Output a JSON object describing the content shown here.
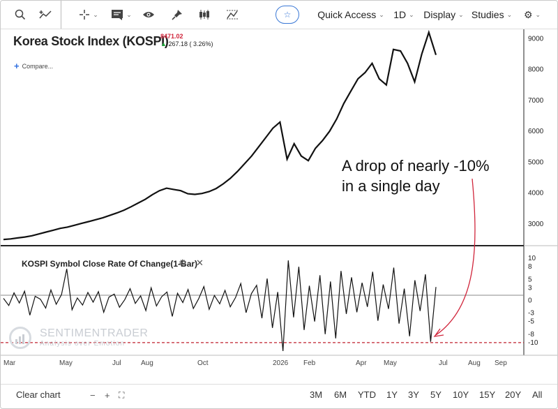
{
  "toolbar": {
    "items": [
      "search-icon",
      "draw-trend-icon",
      "crosshair-icon",
      "chart-type-icon",
      "eye-icon",
      "pin-icon",
      "candlestick-icon",
      "zigzag-icon",
      "star-icon",
      "gear-icon"
    ],
    "quick_access": "Quick Access",
    "interval": "1D",
    "display": "Display",
    "studies": "Studies"
  },
  "chart": {
    "title": "Korea Stock Index (KOSPI)",
    "price": "8471.02",
    "change": "267.18 ( 3.26%)",
    "compare": "Compare...",
    "indicator_title": "KOSPI Symbol Close Rate Of Change(1-Bar)",
    "annotation_line1": "A drop of nearly -10%",
    "annotation_line2": "in a single day",
    "watermark_name": "SENTIMENTRADER",
    "watermark_tagline": "Analysis over Emotion",
    "accent_color": "#d0243a",
    "price_line_color": "#111111"
  },
  "chart_data": [
    {
      "type": "line",
      "series": [
        {
          "values": [
            2500,
            2520,
            2550,
            2580,
            2620,
            2680,
            2740,
            2800,
            2860,
            2900,
            2960,
            3020,
            3080,
            3140,
            3200,
            3280,
            3360,
            3450,
            3560,
            3680,
            3800,
            3950,
            4080,
            4160,
            4120,
            4080,
            3980,
            3960,
            3990,
            4050,
            4150,
            4300,
            4480,
            4700,
            4950,
            5200,
            5500,
            5800,
            6100,
            6300,
            5100,
            5600,
            5200,
            5050,
            5450,
            5700,
            6000,
            6400,
            6900,
            7300,
            7700,
            7900,
            8200,
            7700,
            7500,
            8650,
            8600,
            8200,
            7600,
            8500,
            9200,
            8471
          ]
        }
      ],
      "ylim": [
        2300,
        9300
      ],
      "y_ticks": [
        3000,
        4000,
        5000,
        6000,
        7000,
        8000,
        9000
      ]
    },
    {
      "type": "line",
      "series": [
        {
          "values": [
            0.5,
            -1.2,
            1.8,
            -0.6,
            2.2,
            -3.5,
            1.0,
            0.3,
            -1.8,
            2.5,
            -0.9,
            1.4,
            7.5,
            -2.2,
            0.6,
            -1.1,
            1.9,
            -0.4,
            2.1,
            -2.8,
            0.8,
            1.5,
            -1.6,
            0.2,
            2.8,
            -0.7,
            1.1,
            -2.4,
            3.0,
            -1.3,
            0.9,
            2.0,
            -3.8,
            1.7,
            -0.5,
            2.6,
            -1.9,
            0.4,
            3.3,
            -2.1,
            1.2,
            -0.8,
            2.4,
            -1.5,
            0.7,
            4.0,
            -2.9,
            1.6,
            3.6,
            -4.2,
            5.2,
            -6.5,
            2.0,
            -12.0,
            9.5,
            -4.0,
            8.0,
            -7.0,
            3.5,
            -5.0,
            6.0,
            -8.0,
            4.5,
            -9.0,
            7.0,
            -3.2,
            5.5,
            -2.8,
            4.2,
            -1.5,
            6.8,
            -4.8,
            3.8,
            -2.0,
            7.8,
            -5.5,
            2.8,
            -8.5,
            4.8,
            -2.5,
            6.2,
            -9.8,
            3.2
          ]
        }
      ],
      "ylim": [
        -13,
        13
      ],
      "y_ticks": [
        10,
        8,
        5,
        3,
        0,
        -3,
        -5,
        -8,
        -10
      ],
      "reference_line": -10
    }
  ],
  "x_axis": {
    "labels": [
      "Mar",
      "May",
      "Jul",
      "Aug",
      "Oct",
      "2026",
      "Feb",
      "Apr",
      "May",
      "Jul",
      "Aug",
      "Sep"
    ]
  },
  "bottom": {
    "clear_chart": "Clear chart",
    "zoom_out": "−",
    "zoom_in": "+",
    "ranges": [
      "3M",
      "6M",
      "YTD",
      "1Y",
      "3Y",
      "5Y",
      "10Y",
      "15Y",
      "20Y",
      "All"
    ]
  }
}
